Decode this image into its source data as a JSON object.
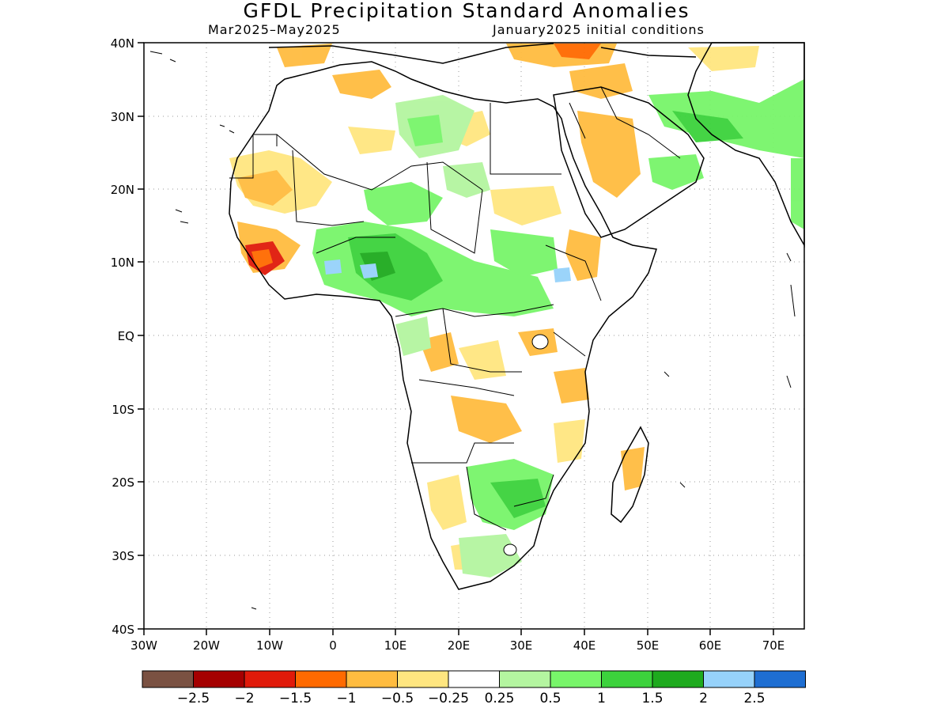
{
  "title": "GFDL Precipitation Standard Anomalies",
  "subtitle_left": "Mar2025–May2025",
  "subtitle_right": "January2025 initial conditions",
  "y_ticks": [
    "40N",
    "30N",
    "20N",
    "10N",
    "EQ",
    "10S",
    "20S",
    "30S",
    "40S"
  ],
  "x_ticks": [
    "30W",
    "20W",
    "10W",
    "0",
    "10E",
    "20E",
    "30E",
    "40E",
    "50E",
    "60E",
    "70E"
  ],
  "colorbar": {
    "colors": [
      "#7a5142",
      "#a50000",
      "#e01a0a",
      "#ff6a00",
      "#ffbc40",
      "#ffe680",
      "#ffffff",
      "#b4f5a0",
      "#78f56a",
      "#3cd23c",
      "#1eaa1e",
      "#96d2fa",
      "#1e6ed2"
    ],
    "labels": [
      "−2.5",
      "−2",
      "−1.5",
      "−1",
      "−0.5",
      "−0.25",
      "0.25",
      "0.5",
      "1",
      "1.5",
      "2",
      "2.5"
    ]
  }
}
